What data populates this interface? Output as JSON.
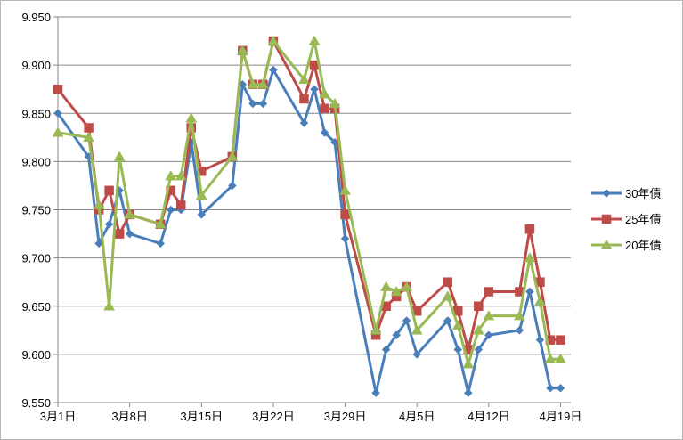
{
  "chart_data": {
    "type": "line",
    "title": "",
    "xlabel": "",
    "ylabel": "",
    "ylim": [
      9.55,
      9.95
    ],
    "yticks": [
      "9.550",
      "9.600",
      "9.650",
      "9.700",
      "9.750",
      "9.800",
      "9.850",
      "9.900",
      "9.950"
    ],
    "x_range": [
      "2010-03-01",
      "2010-04-20"
    ],
    "xticks": [
      {
        "date": "2010-03-01",
        "label": "3月1日"
      },
      {
        "date": "2010-03-08",
        "label": "3月8日"
      },
      {
        "date": "2010-03-15",
        "label": "3月15日"
      },
      {
        "date": "2010-03-22",
        "label": "3月22日"
      },
      {
        "date": "2010-03-29",
        "label": "3月29日"
      },
      {
        "date": "2010-04-05",
        "label": "4月5日"
      },
      {
        "date": "2010-04-12",
        "label": "4月12日"
      },
      {
        "date": "2010-04-19",
        "label": "4月19日"
      }
    ],
    "x": [
      "2010-03-01",
      "2010-03-04",
      "2010-03-05",
      "2010-03-06",
      "2010-03-07",
      "2010-03-08",
      "2010-03-11",
      "2010-03-12",
      "2010-03-13",
      "2010-03-14",
      "2010-03-15",
      "2010-03-18",
      "2010-03-19",
      "2010-03-20",
      "2010-03-21",
      "2010-03-22",
      "2010-03-25",
      "2010-03-26",
      "2010-03-27",
      "2010-03-28",
      "2010-03-29",
      "2010-04-01",
      "2010-04-02",
      "2010-04-03",
      "2010-04-04",
      "2010-04-05",
      "2010-04-08",
      "2010-04-09",
      "2010-04-10",
      "2010-04-11",
      "2010-04-12",
      "2010-04-15",
      "2010-04-16",
      "2010-04-17",
      "2010-04-18",
      "2010-04-19"
    ],
    "series": [
      {
        "name": "30年債",
        "color": "#4a7ebb",
        "marker": "diamond",
        "values": [
          9.85,
          9.805,
          9.715,
          9.735,
          9.77,
          9.725,
          9.715,
          9.75,
          9.75,
          9.82,
          9.745,
          9.775,
          9.88,
          9.86,
          9.86,
          9.895,
          9.84,
          9.875,
          9.83,
          9.82,
          9.72,
          9.56,
          9.605,
          9.62,
          9.635,
          9.6,
          9.635,
          9.605,
          9.56,
          9.605,
          9.62,
          9.625,
          9.665,
          9.615,
          9.565,
          9.565
        ]
      },
      {
        "name": "25年債",
        "color": "#be4b48",
        "marker": "square",
        "values": [
          9.875,
          9.835,
          9.75,
          9.77,
          9.725,
          9.745,
          9.735,
          9.77,
          9.755,
          9.835,
          9.79,
          9.805,
          9.915,
          9.88,
          9.88,
          9.925,
          9.865,
          9.9,
          9.855,
          9.855,
          9.745,
          9.62,
          9.65,
          9.66,
          9.67,
          9.645,
          9.675,
          9.645,
          9.605,
          9.65,
          9.665,
          9.665,
          9.73,
          9.675,
          9.615,
          9.615
        ]
      },
      {
        "name": "20年債",
        "color": "#98b954",
        "marker": "triangle",
        "values": [
          9.83,
          9.825,
          9.755,
          9.65,
          9.805,
          9.745,
          9.735,
          9.785,
          9.785,
          9.845,
          9.765,
          9.805,
          9.915,
          9.88,
          9.88,
          9.925,
          9.885,
          9.925,
          9.87,
          9.86,
          9.77,
          9.625,
          9.67,
          9.665,
          9.67,
          9.625,
          9.66,
          9.63,
          9.59,
          9.625,
          9.64,
          9.64,
          9.7,
          9.655,
          9.595,
          9.595
        ]
      }
    ],
    "grid": "horizontal",
    "legend": "right"
  }
}
